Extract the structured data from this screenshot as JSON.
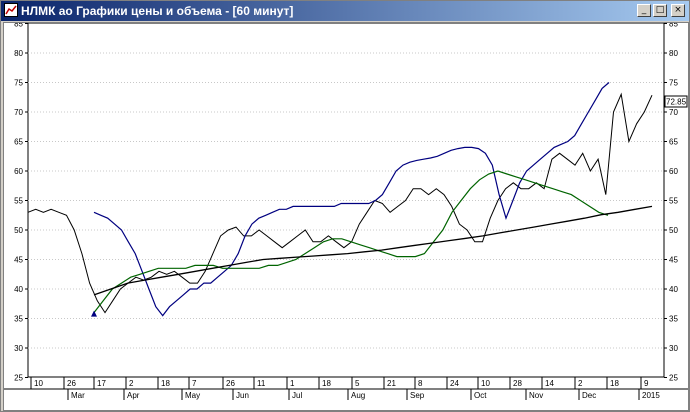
{
  "window": {
    "title": "НЛМК ао Графики цены и объема - [60 минут]",
    "buttons": {
      "minimize": "_",
      "maximize": "□",
      "close": "×"
    }
  },
  "price_badge": "72.85",
  "colors": {
    "price": "#000000",
    "upper_band": "#000080",
    "lower_band": "#006400",
    "ma": "#000000",
    "marker": "#000080"
  },
  "chart_data": {
    "type": "line",
    "ylim": [
      25,
      85
    ],
    "yticks": [
      25,
      30,
      35,
      40,
      45,
      50,
      55,
      60,
      65,
      70,
      75,
      80,
      85
    ],
    "day_ticks": [
      "10",
      "26",
      "17",
      "2",
      "18",
      "7",
      "26",
      "11",
      "1",
      "18",
      "5",
      "21",
      "8",
      "24",
      "10",
      "28",
      "14",
      "2",
      "18",
      "9"
    ],
    "month_ticks": [
      "Mar",
      "Apr",
      "May",
      "Jun",
      "Jul",
      "Aug",
      "Sep",
      "Oct",
      "Nov",
      "Dec",
      "2015"
    ],
    "current_price": 72.85,
    "series": [
      {
        "values": [
          53,
          53.5,
          53,
          53.5,
          53,
          52.5,
          50,
          46,
          41,
          38,
          36,
          38,
          40,
          41,
          42,
          41.5,
          42,
          43,
          42.5,
          43,
          42,
          41,
          41,
          43,
          46,
          49,
          50,
          50.5,
          49,
          49,
          50,
          49,
          48,
          47,
          48,
          49,
          50,
          48,
          48,
          49,
          48,
          47,
          48,
          51,
          53,
          55,
          54.5,
          53,
          54,
          55,
          57,
          57,
          56,
          57,
          56,
          54,
          51,
          50,
          48,
          48,
          52,
          55,
          57,
          58,
          57,
          57,
          58,
          57,
          62,
          63,
          62,
          61,
          63,
          60,
          62,
          56,
          70,
          73,
          65,
          68,
          70,
          72.85
        ]
      },
      {
        "values": [
          53,
          52.5,
          52,
          51,
          50,
          48,
          46,
          43,
          40,
          37,
          35.5,
          37,
          38,
          39,
          40,
          40,
          41,
          41,
          42,
          43,
          44,
          46,
          49,
          51,
          52,
          52.5,
          53,
          53.5,
          53.5,
          54,
          54,
          54,
          54,
          54,
          54,
          54,
          54.5,
          54.5,
          54.5,
          54.5,
          54.5,
          55,
          56,
          58,
          60,
          61,
          61.5,
          61.8,
          62,
          62.2,
          62.5,
          63,
          63.5,
          63.8,
          64,
          64,
          63.8,
          63,
          61,
          56,
          52,
          55,
          58,
          60,
          61,
          62,
          63,
          64,
          64.5,
          65,
          66,
          68,
          70,
          72,
          74,
          75
        ]
      },
      {
        "values": [
          36,
          38,
          40,
          41,
          42,
          42.5,
          43,
          43.5,
          43.5,
          43.5,
          43.5,
          44,
          44,
          44,
          43.5,
          43.5,
          43.5,
          43.5,
          43.5,
          44,
          44,
          44.5,
          45,
          46,
          47,
          48,
          48.5,
          48.5,
          48,
          47.5,
          47,
          46.5,
          46,
          45.5,
          45.5,
          45.5,
          46,
          48,
          50,
          53,
          55,
          57,
          58.5,
          59.5,
          60,
          59.5,
          59,
          58.5,
          58,
          57.5,
          57,
          56.5,
          56,
          55,
          54,
          53,
          52.5
        ]
      },
      {
        "values": [
          39,
          40,
          41,
          41.5,
          42,
          42.5,
          43,
          43.5,
          44,
          44.5,
          45,
          45.2,
          45.4,
          45.6,
          45.8,
          46,
          46.3,
          46.6,
          47,
          47.4,
          47.8,
          48.2,
          48.6,
          49,
          49.5,
          50,
          50.5,
          51,
          51.5,
          52,
          52.6,
          53,
          53.5,
          54
        ]
      }
    ]
  }
}
